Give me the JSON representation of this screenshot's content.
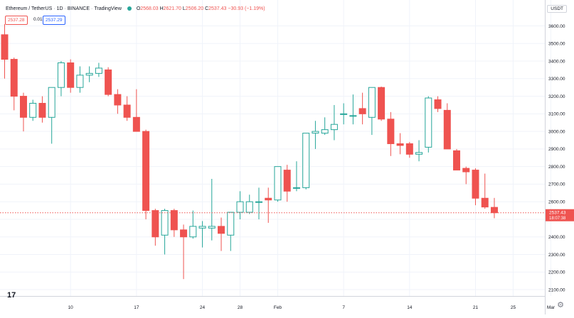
{
  "header": {
    "symbol": "Ethereum / TetherUS",
    "interval": "1D",
    "exchange": "BINANCE",
    "source": "TradingView",
    "ohlc": {
      "o_label": "O",
      "o_value": "2568.03",
      "h_label": "H",
      "h_value": "2621.70",
      "l_label": "L",
      "l_value": "2506.20",
      "c_label": "C",
      "c_value": "2537.43",
      "change": "−30.93 (−1.19%)"
    },
    "bid": "2537.28",
    "spread": "0.01",
    "ask": "2537.29"
  },
  "axis": {
    "currency": "USDT",
    "last_price": "2537.43",
    "countdown": "18:07:38"
  },
  "colors": {
    "up": "#26a69a",
    "down": "#ef5350",
    "grid": "#f0f3fa",
    "text": "#131722",
    "last_price_line": "#ef5350"
  },
  "chart_data": {
    "type": "candlestick",
    "title": "",
    "ylim": [
      2050,
      3700
    ],
    "y_ticks": [
      2100,
      2200,
      2300,
      2400,
      2500,
      2600,
      2700,
      2800,
      2900,
      3000,
      3100,
      3200,
      3300,
      3400,
      3500,
      3600
    ],
    "x_ticks": [
      {
        "label": "10",
        "index": 7
      },
      {
        "label": "17",
        "index": 14
      },
      {
        "label": "24",
        "index": 21
      },
      {
        "label": "28",
        "index": 25
      },
      {
        "label": "Feb",
        "index": 29
      },
      {
        "label": "7",
        "index": 36
      },
      {
        "label": "14",
        "index": 43
      },
      {
        "label": "21",
        "index": 50
      },
      {
        "label": "25",
        "index": 54
      },
      {
        "label": "Mar",
        "index": 58
      }
    ],
    "candles": [
      {
        "o": 3550,
        "h": 3610,
        "l": 3300,
        "c": 3410
      },
      {
        "o": 3410,
        "h": 3420,
        "l": 3120,
        "c": 3200
      },
      {
        "o": 3200,
        "h": 3220,
        "l": 3000,
        "c": 3080
      },
      {
        "o": 3080,
        "h": 3180,
        "l": 3060,
        "c": 3160
      },
      {
        "o": 3160,
        "h": 3200,
        "l": 3050,
        "c": 3080
      },
      {
        "o": 3080,
        "h": 3250,
        "l": 2930,
        "c": 3250
      },
      {
        "o": 3250,
        "h": 3400,
        "l": 3200,
        "c": 3390
      },
      {
        "o": 3390,
        "h": 3410,
        "l": 3220,
        "c": 3250
      },
      {
        "o": 3250,
        "h": 3370,
        "l": 3220,
        "c": 3320
      },
      {
        "o": 3320,
        "h": 3370,
        "l": 3280,
        "c": 3330
      },
      {
        "o": 3330,
        "h": 3390,
        "l": 3310,
        "c": 3360
      },
      {
        "o": 3350,
        "h": 3365,
        "l": 3200,
        "c": 3210
      },
      {
        "o": 3210,
        "h": 3240,
        "l": 3100,
        "c": 3150
      },
      {
        "o": 3150,
        "h": 3200,
        "l": 3060,
        "c": 3080
      },
      {
        "o": 3080,
        "h": 3240,
        "l": 3000,
        "c": 3000
      },
      {
        "o": 3000,
        "h": 3010,
        "l": 2500,
        "c": 2550
      },
      {
        "o": 2550,
        "h": 2560,
        "l": 2350,
        "c": 2400
      },
      {
        "o": 2410,
        "h": 2560,
        "l": 2300,
        "c": 2550
      },
      {
        "o": 2550,
        "h": 2560,
        "l": 2400,
        "c": 2440
      },
      {
        "o": 2440,
        "h": 2470,
        "l": 2160,
        "c": 2400
      },
      {
        "o": 2400,
        "h": 2550,
        "l": 2390,
        "c": 2460
      },
      {
        "o": 2450,
        "h": 2490,
        "l": 2340,
        "c": 2460
      },
      {
        "o": 2450,
        "h": 2730,
        "l": 2380,
        "c": 2460
      },
      {
        "o": 2460,
        "h": 2510,
        "l": 2320,
        "c": 2420
      },
      {
        "o": 2410,
        "h": 2540,
        "l": 2320,
        "c": 2540
      },
      {
        "o": 2540,
        "h": 2660,
        "l": 2500,
        "c": 2600
      },
      {
        "o": 2540,
        "h": 2640,
        "l": 2530,
        "c": 2600
      },
      {
        "o": 2600,
        "h": 2680,
        "l": 2500,
        "c": 2600
      },
      {
        "o": 2620,
        "h": 2680,
        "l": 2480,
        "c": 2610
      },
      {
        "o": 2610,
        "h": 2790,
        "l": 2600,
        "c": 2800
      },
      {
        "o": 2780,
        "h": 2810,
        "l": 2600,
        "c": 2660
      },
      {
        "o": 2680,
        "h": 2830,
        "l": 2660,
        "c": 2680
      },
      {
        "o": 2680,
        "h": 2990,
        "l": 2670,
        "c": 2990
      },
      {
        "o": 2990,
        "h": 3060,
        "l": 2900,
        "c": 3000
      },
      {
        "o": 2990,
        "h": 3080,
        "l": 2980,
        "c": 3010
      },
      {
        "o": 3010,
        "h": 3150,
        "l": 2950,
        "c": 3040
      },
      {
        "o": 3100,
        "h": 3160,
        "l": 3040,
        "c": 3100
      },
      {
        "o": 3090,
        "h": 3210,
        "l": 3040,
        "c": 3090
      },
      {
        "o": 3130,
        "h": 3220,
        "l": 3040,
        "c": 3100
      },
      {
        "o": 3080,
        "h": 3250,
        "l": 2980,
        "c": 3250
      },
      {
        "o": 3250,
        "h": 3255,
        "l": 3060,
        "c": 3070
      },
      {
        "o": 3070,
        "h": 3110,
        "l": 2860,
        "c": 2930
      },
      {
        "o": 2930,
        "h": 2990,
        "l": 2870,
        "c": 2920
      },
      {
        "o": 2930,
        "h": 2940,
        "l": 2850,
        "c": 2870
      },
      {
        "o": 2870,
        "h": 2950,
        "l": 2830,
        "c": 2880
      },
      {
        "o": 2910,
        "h": 3200,
        "l": 2880,
        "c": 3190
      },
      {
        "o": 3180,
        "h": 3200,
        "l": 3110,
        "c": 3130
      },
      {
        "o": 3120,
        "h": 3160,
        "l": 2910,
        "c": 2900
      },
      {
        "o": 2890,
        "h": 2900,
        "l": 2780,
        "c": 2780
      },
      {
        "o": 2790,
        "h": 2800,
        "l": 2700,
        "c": 2770
      },
      {
        "o": 2780,
        "h": 2790,
        "l": 2580,
        "c": 2620
      },
      {
        "o": 2620,
        "h": 2760,
        "l": 2560,
        "c": 2570
      },
      {
        "o": 2568.03,
        "h": 2621.7,
        "l": 2506.2,
        "c": 2537.43
      }
    ]
  }
}
